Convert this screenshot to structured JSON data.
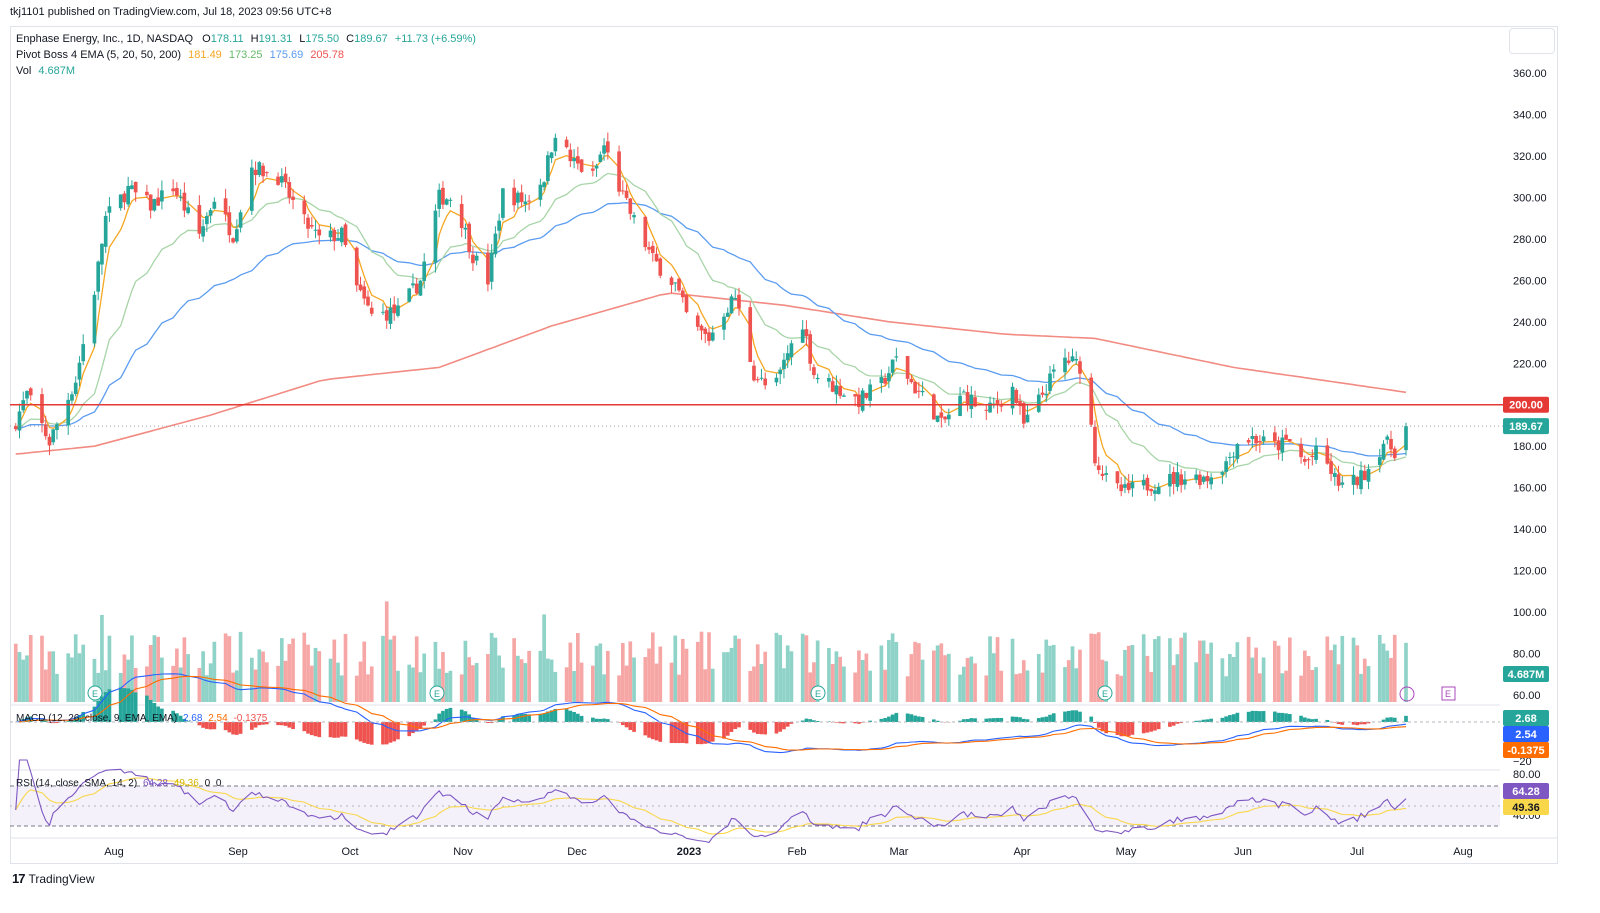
{
  "publish_line": "tkj1101 published on TradingView.com, Jul 18, 2023 09:56 UTC+8",
  "symbol_line": {
    "name": "Enphase Energy, Inc., 1D, NASDAQ",
    "open_label": "O",
    "open": "178.11",
    "high_label": "H",
    "high": "191.31",
    "low_label": "L",
    "low": "175.50",
    "close_label": "C",
    "close": "189.67",
    "change": "+11.73 (+6.59%)"
  },
  "ema_line": {
    "label": "Pivot Boss 4 EMA (5, 20, 50, 200)",
    "values": [
      "181.49",
      "173.25",
      "175.69",
      "205.78"
    ]
  },
  "vol_line": {
    "label": "Vol",
    "value": "4.687M"
  },
  "macd_legend": {
    "label": "MACD (12, 26, close, 9, EMA, EMA)",
    "macd": "2.68",
    "signal": "2.54",
    "hist": "-0.1375"
  },
  "rsi_legend": {
    "label": "RSI (14, close, SMA, 14, 2)",
    "rsi": "64.28",
    "sma": "49.36",
    "x1": "0",
    "x2": "0"
  },
  "brand": "TradingView",
  "colors": {
    "up": "#26a69a",
    "down": "#ef5350",
    "vol_up": "#8fd3c8",
    "vol_down": "#f6a7a5",
    "ema5": "#f5a623",
    "ema20": "#a5d6a7",
    "ema50": "#5b9cf0",
    "ema200": "#f28b82",
    "line200": "#e53935",
    "macd": "#2962ff",
    "signal": "#ff6d00",
    "rsi": "#7e57c2",
    "rsi_sma": "#f9d74b"
  },
  "chart_data": {
    "type": "candlestick",
    "price_axis_ticks": [
      360,
      340,
      320,
      300,
      280,
      260,
      240,
      220,
      200,
      180,
      160,
      140,
      120,
      100,
      80,
      60
    ],
    "price_ylim": [
      55,
      370
    ],
    "x_ticks": [
      "Aug",
      "Sep",
      "Oct",
      "Nov",
      "Dec",
      "2023",
      "Feb",
      "Mar",
      "Apr",
      "May",
      "Jun",
      "Jul",
      "Aug"
    ],
    "horizontal_line": {
      "price": 200,
      "label": "200.00"
    },
    "last_price": {
      "price": 189.67,
      "label": "189.67"
    },
    "volume_label": "4.687M",
    "close_anchors": [
      [
        "Jul 10",
        188
      ],
      [
        "Jul 14",
        205
      ],
      [
        "Jul 20",
        182
      ],
      [
        "Jul 27",
        212
      ],
      [
        "Aug 1",
        255
      ],
      [
        "Aug 4",
        290
      ],
      [
        "Aug 10",
        304
      ],
      [
        "Aug 16",
        296
      ],
      [
        "Aug 22",
        305
      ],
      [
        "Aug 29",
        282
      ],
      [
        "Sep 2",
        300
      ],
      [
        "Sep 7",
        282
      ],
      [
        "Sep 12",
        315
      ],
      [
        "Sep 19",
        310
      ],
      [
        "Sep 26",
        288
      ],
      [
        "Sep 30",
        280
      ],
      [
        "Oct 6",
        282
      ],
      [
        "Oct 10",
        256
      ],
      [
        "Oct 14",
        243
      ],
      [
        "Oct 21",
        245
      ],
      [
        "Oct 27",
        260
      ],
      [
        "Nov 1",
        300
      ],
      [
        "Nov 5",
        300
      ],
      [
        "Nov 10",
        272
      ],
      [
        "Nov 14",
        260
      ],
      [
        "Nov 18",
        302
      ],
      [
        "Nov 24",
        298
      ],
      [
        "Nov 29",
        310
      ],
      [
        "Dec 2",
        332
      ],
      [
        "Dec 6",
        318
      ],
      [
        "Dec 12",
        310
      ],
      [
        "Dec 15",
        325
      ],
      [
        "Dec 20",
        300
      ],
      [
        "Dec 28",
        270
      ],
      [
        "Jan 3",
        258
      ],
      [
        "Jan 7",
        238
      ],
      [
        "Jan 12",
        232
      ],
      [
        "Jan 16",
        245
      ],
      [
        "Jan 19",
        252
      ],
      [
        "Jan 24",
        215
      ],
      [
        "Jan 29",
        205
      ],
      [
        "Feb 2",
        225
      ],
      [
        "Feb 6",
        240
      ],
      [
        "Feb 9",
        215
      ],
      [
        "Feb 15",
        208
      ],
      [
        "Feb 21",
        202
      ],
      [
        "Feb 27",
        210
      ],
      [
        "Mar 3",
        222
      ],
      [
        "Mar 8",
        208
      ],
      [
        "Mar 12",
        200
      ],
      [
        "Mar 15",
        190
      ],
      [
        "Mar 21",
        205
      ],
      [
        "Mar 27",
        196
      ],
      [
        "Apr 3",
        208
      ],
      [
        "Apr 6",
        190
      ],
      [
        "Apr 10",
        202
      ],
      [
        "Apr 14",
        215
      ],
      [
        "Apr 17",
        222
      ],
      [
        "Apr 22",
        218
      ],
      [
        "Apr 25",
        175
      ],
      [
        "Apr 29",
        160
      ],
      [
        "May 3",
        158
      ],
      [
        "May 10",
        162
      ],
      [
        "May 18",
        165
      ],
      [
        "May 25",
        165
      ],
      [
        "May 30",
        172
      ],
      [
        "Jun 2",
        182
      ],
      [
        "Jun 6",
        184
      ],
      [
        "Jun 12",
        180
      ],
      [
        "Jun 16",
        182
      ],
      [
        "Jun 20",
        172
      ],
      [
        "Jun 24",
        178
      ],
      [
        "Jun 28",
        164
      ],
      [
        "Jul 1",
        160
      ],
      [
        "Jul 5",
        165
      ],
      [
        "Jul 8",
        172
      ],
      [
        "Jul 11",
        182
      ],
      [
        "Jul 14",
        178
      ],
      [
        "Jul 17",
        189.67
      ]
    ],
    "ema200_anchors": [
      [
        "Jul 10",
        176
      ],
      [
        "Aug 1",
        180
      ],
      [
        "Sep 1",
        195
      ],
      [
        "Oct 1",
        212
      ],
      [
        "Nov 1",
        218
      ],
      [
        "Dec 1",
        238
      ],
      [
        "Jan 1",
        254
      ],
      [
        "Feb 1",
        248
      ],
      [
        "Mar 1",
        240
      ],
      [
        "Apr 1",
        234
      ],
      [
        "Apr 25",
        232
      ],
      [
        "Jun 1",
        218
      ],
      [
        "Jul 17",
        206
      ]
    ],
    "macd_axis_ticks": [
      0,
      -20
    ],
    "rsi_axis_ticks": [
      80.0,
      40.0
    ],
    "rsi_ylim": [
      25,
      85
    ]
  }
}
